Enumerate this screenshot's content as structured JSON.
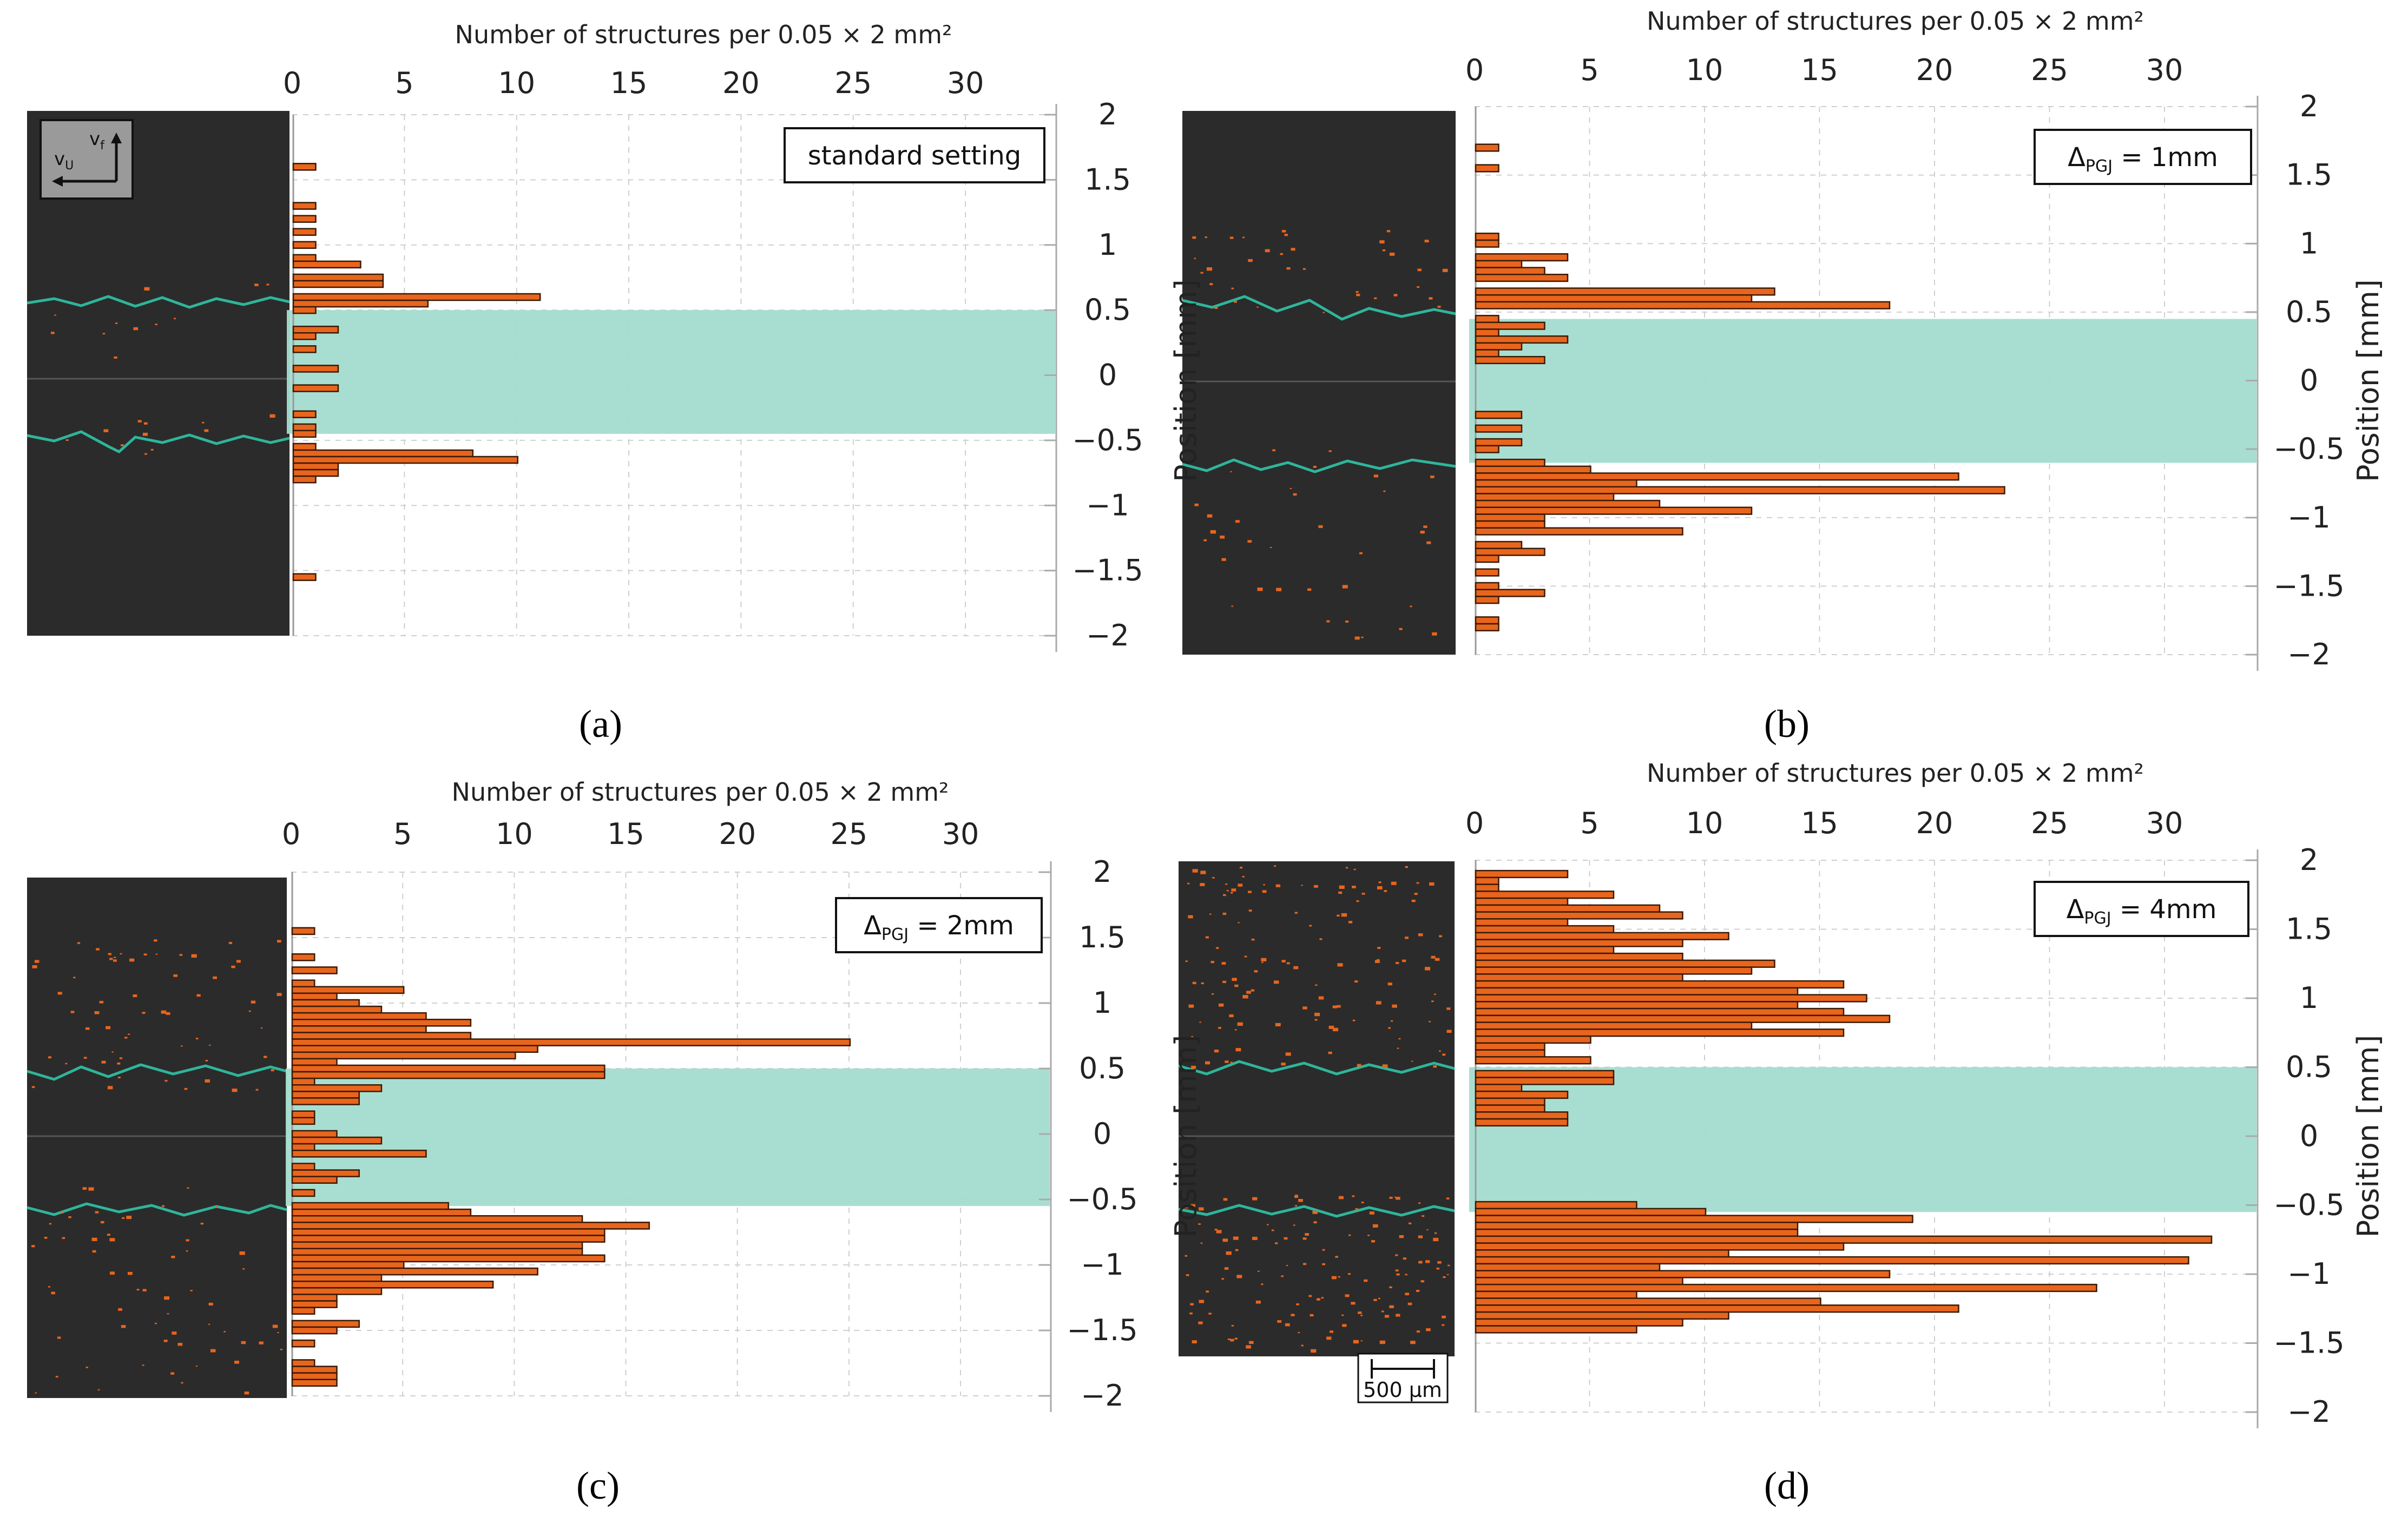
{
  "figure": {
    "xaxis_title": "Number of structures per 0.05 × 2 mm²",
    "yaxis_title": "Position [mm]",
    "scale_bar_label": "500 µm",
    "inset_labels": {
      "v_f": "v",
      "v_f_sub": "f",
      "v_u": "v",
      "v_u_sub": "U"
    }
  },
  "chart_data": [
    {
      "id": "a",
      "panel_label": "(a)",
      "type": "bar",
      "orientation": "horizontal",
      "legend_text": "standard setting",
      "legend_sub": "",
      "legend_suffix": "",
      "xlabel": "Number of structures per 0.05 × 2 mm²",
      "ylabel": "Position [mm]",
      "show_ylabel": false,
      "xlim": [
        0,
        34
      ],
      "ylim": [
        -2,
        2
      ],
      "x_ticks": [
        0,
        5,
        10,
        15,
        20,
        25,
        30
      ],
      "y_ticks": [
        2,
        1.5,
        1,
        0.5,
        0,
        -0.5,
        -1,
        -1.5,
        -2
      ],
      "y_tick_labels": [
        "2",
        "1.5",
        "1",
        "0.5",
        "0",
        "−0.5",
        "−1",
        "−1.5",
        "−2"
      ],
      "band": [
        -0.45,
        0.5
      ],
      "bins": [
        {
          "y": 1.6,
          "v": 1
        },
        {
          "y": 1.3,
          "v": 1
        },
        {
          "y": 1.2,
          "v": 1
        },
        {
          "y": 1.1,
          "v": 1
        },
        {
          "y": 1.0,
          "v": 1
        },
        {
          "y": 0.9,
          "v": 1
        },
        {
          "y": 0.85,
          "v": 3
        },
        {
          "y": 0.75,
          "v": 4
        },
        {
          "y": 0.7,
          "v": 4
        },
        {
          "y": 0.6,
          "v": 11
        },
        {
          "y": 0.55,
          "v": 6
        },
        {
          "y": 0.5,
          "v": 1
        },
        {
          "y": 0.35,
          "v": 2
        },
        {
          "y": 0.3,
          "v": 1
        },
        {
          "y": 0.2,
          "v": 1
        },
        {
          "y": 0.05,
          "v": 2
        },
        {
          "y": -0.1,
          "v": 2
        },
        {
          "y": -0.3,
          "v": 1
        },
        {
          "y": -0.4,
          "v": 1
        },
        {
          "y": -0.45,
          "v": 1
        },
        {
          "y": -0.55,
          "v": 1
        },
        {
          "y": -0.6,
          "v": 8
        },
        {
          "y": -0.65,
          "v": 10
        },
        {
          "y": -0.7,
          "v": 2
        },
        {
          "y": -0.75,
          "v": 2
        },
        {
          "y": -0.8,
          "v": 1
        },
        {
          "y": -1.55,
          "v": 1
        }
      ]
    },
    {
      "id": "b",
      "panel_label": "(b)",
      "type": "bar",
      "orientation": "horizontal",
      "legend_text": "Δ",
      "legend_sub": "PGJ",
      "legend_suffix": " = 1mm",
      "xlabel": "Number of structures per 0.05 × 2 mm²",
      "ylabel": "Position [mm]",
      "show_ylabel": true,
      "xlim": [
        0,
        34
      ],
      "ylim": [
        -2,
        2
      ],
      "x_ticks": [
        0,
        5,
        10,
        15,
        20,
        25,
        30
      ],
      "y_ticks": [
        2,
        1.5,
        1,
        0.5,
        0,
        -0.5,
        -1,
        -1.5,
        -2
      ],
      "y_tick_labels": [
        "2",
        "1.5",
        "1",
        "0.5",
        "0",
        "−0.5",
        "−1",
        "−1.5",
        "−2"
      ],
      "band": [
        -0.6,
        0.45
      ],
      "bins": [
        {
          "y": 1.7,
          "v": 1
        },
        {
          "y": 1.55,
          "v": 1
        },
        {
          "y": 1.05,
          "v": 1
        },
        {
          "y": 1.0,
          "v": 1
        },
        {
          "y": 0.9,
          "v": 4
        },
        {
          "y": 0.85,
          "v": 2
        },
        {
          "y": 0.8,
          "v": 3
        },
        {
          "y": 0.75,
          "v": 4
        },
        {
          "y": 0.65,
          "v": 13
        },
        {
          "y": 0.6,
          "v": 12
        },
        {
          "y": 0.55,
          "v": 18
        },
        {
          "y": 0.45,
          "v": 1
        },
        {
          "y": 0.4,
          "v": 3
        },
        {
          "y": 0.35,
          "v": 1
        },
        {
          "y": 0.3,
          "v": 4
        },
        {
          "y": 0.25,
          "v": 2
        },
        {
          "y": 0.2,
          "v": 1
        },
        {
          "y": 0.15,
          "v": 3
        },
        {
          "y": -0.25,
          "v": 2
        },
        {
          "y": -0.35,
          "v": 2
        },
        {
          "y": -0.45,
          "v": 2
        },
        {
          "y": -0.5,
          "v": 1
        },
        {
          "y": -0.6,
          "v": 3
        },
        {
          "y": -0.65,
          "v": 5
        },
        {
          "y": -0.7,
          "v": 21
        },
        {
          "y": -0.75,
          "v": 7
        },
        {
          "y": -0.8,
          "v": 23
        },
        {
          "y": -0.85,
          "v": 6
        },
        {
          "y": -0.9,
          "v": 8
        },
        {
          "y": -0.95,
          "v": 12
        },
        {
          "y": -1.0,
          "v": 3
        },
        {
          "y": -1.05,
          "v": 3
        },
        {
          "y": -1.1,
          "v": 9
        },
        {
          "y": -1.2,
          "v": 2
        },
        {
          "y": -1.25,
          "v": 3
        },
        {
          "y": -1.3,
          "v": 1
        },
        {
          "y": -1.4,
          "v": 1
        },
        {
          "y": -1.5,
          "v": 1
        },
        {
          "y": -1.55,
          "v": 3
        },
        {
          "y": -1.6,
          "v": 1
        },
        {
          "y": -1.75,
          "v": 1
        },
        {
          "y": -1.8,
          "v": 1
        }
      ]
    },
    {
      "id": "c",
      "panel_label": "(c)",
      "type": "bar",
      "orientation": "horizontal",
      "legend_text": "Δ",
      "legend_sub": "PGJ",
      "legend_suffix": " = 2mm",
      "xlabel": "Number of structures per 0.05 × 2 mm²",
      "ylabel": "Position [mm]",
      "show_ylabel": false,
      "xlim": [
        0,
        34
      ],
      "ylim": [
        -2,
        2
      ],
      "x_ticks": [
        0,
        5,
        10,
        15,
        20,
        25,
        30
      ],
      "y_ticks": [
        2,
        1.5,
        1,
        0.5,
        0,
        -0.5,
        -1,
        -1.5,
        -2
      ],
      "y_tick_labels": [
        "2",
        "1.5",
        "1",
        "0.5",
        "0",
        "−0.5",
        "−1",
        "−1.5",
        "−2"
      ],
      "band": [
        -0.55,
        0.5
      ],
      "bins": [
        {
          "y": 1.55,
          "v": 1
        },
        {
          "y": 1.35,
          "v": 1
        },
        {
          "y": 1.25,
          "v": 2
        },
        {
          "y": 1.15,
          "v": 1
        },
        {
          "y": 1.1,
          "v": 5
        },
        {
          "y": 1.05,
          "v": 2
        },
        {
          "y": 1.0,
          "v": 3
        },
        {
          "y": 0.95,
          "v": 4
        },
        {
          "y": 0.9,
          "v": 6
        },
        {
          "y": 0.85,
          "v": 8
        },
        {
          "y": 0.8,
          "v": 6
        },
        {
          "y": 0.75,
          "v": 8
        },
        {
          "y": 0.7,
          "v": 25
        },
        {
          "y": 0.65,
          "v": 11
        },
        {
          "y": 0.6,
          "v": 10
        },
        {
          "y": 0.55,
          "v": 2
        },
        {
          "y": 0.5,
          "v": 14
        },
        {
          "y": 0.45,
          "v": 14
        },
        {
          "y": 0.4,
          "v": 1
        },
        {
          "y": 0.35,
          "v": 4
        },
        {
          "y": 0.3,
          "v": 3
        },
        {
          "y": 0.25,
          "v": 3
        },
        {
          "y": 0.15,
          "v": 1
        },
        {
          "y": 0.1,
          "v": 1
        },
        {
          "y": 0.0,
          "v": 2
        },
        {
          "y": -0.05,
          "v": 4
        },
        {
          "y": -0.1,
          "v": 1
        },
        {
          "y": -0.15,
          "v": 6
        },
        {
          "y": -0.25,
          "v": 1
        },
        {
          "y": -0.3,
          "v": 3
        },
        {
          "y": -0.35,
          "v": 2
        },
        {
          "y": -0.45,
          "v": 1
        },
        {
          "y": -0.55,
          "v": 7
        },
        {
          "y": -0.6,
          "v": 8
        },
        {
          "y": -0.65,
          "v": 13
        },
        {
          "y": -0.7,
          "v": 16
        },
        {
          "y": -0.75,
          "v": 14
        },
        {
          "y": -0.8,
          "v": 14
        },
        {
          "y": -0.85,
          "v": 13
        },
        {
          "y": -0.9,
          "v": 13
        },
        {
          "y": -0.95,
          "v": 14
        },
        {
          "y": -1.0,
          "v": 5
        },
        {
          "y": -1.05,
          "v": 11
        },
        {
          "y": -1.1,
          "v": 4
        },
        {
          "y": -1.15,
          "v": 9
        },
        {
          "y": -1.2,
          "v": 4
        },
        {
          "y": -1.25,
          "v": 2
        },
        {
          "y": -1.3,
          "v": 2
        },
        {
          "y": -1.35,
          "v": 1
        },
        {
          "y": -1.45,
          "v": 3
        },
        {
          "y": -1.5,
          "v": 2
        },
        {
          "y": -1.6,
          "v": 1
        },
        {
          "y": -1.75,
          "v": 1
        },
        {
          "y": -1.8,
          "v": 2
        },
        {
          "y": -1.85,
          "v": 2
        },
        {
          "y": -1.9,
          "v": 2
        }
      ]
    },
    {
      "id": "d",
      "panel_label": "(d)",
      "type": "bar",
      "orientation": "horizontal",
      "legend_text": "Δ",
      "legend_sub": "PGJ",
      "legend_suffix": " = 4mm",
      "xlabel": "Number of structures per 0.05 × 2 mm²",
      "ylabel": "Position [mm]",
      "show_ylabel": true,
      "xlim": [
        0,
        34
      ],
      "ylim": [
        -2,
        2
      ],
      "x_ticks": [
        0,
        5,
        10,
        15,
        20,
        25,
        30
      ],
      "y_ticks": [
        2,
        1.5,
        1,
        0.5,
        0,
        -0.5,
        -1,
        -1.5,
        -2
      ],
      "y_tick_labels": [
        "2",
        "1.5",
        "1",
        "0.5",
        "0",
        "−0.5",
        "−1",
        "−1.5",
        "−2"
      ],
      "band": [
        -0.55,
        0.5
      ],
      "bins": [
        {
          "y": 1.9,
          "v": 4
        },
        {
          "y": 1.85,
          "v": 1
        },
        {
          "y": 1.8,
          "v": 1
        },
        {
          "y": 1.75,
          "v": 6
        },
        {
          "y": 1.7,
          "v": 4
        },
        {
          "y": 1.65,
          "v": 8
        },
        {
          "y": 1.6,
          "v": 9
        },
        {
          "y": 1.55,
          "v": 4
        },
        {
          "y": 1.5,
          "v": 6
        },
        {
          "y": 1.45,
          "v": 11
        },
        {
          "y": 1.4,
          "v": 9
        },
        {
          "y": 1.35,
          "v": 6
        },
        {
          "y": 1.3,
          "v": 9
        },
        {
          "y": 1.25,
          "v": 13
        },
        {
          "y": 1.2,
          "v": 12
        },
        {
          "y": 1.15,
          "v": 9
        },
        {
          "y": 1.1,
          "v": 16
        },
        {
          "y": 1.05,
          "v": 14
        },
        {
          "y": 1.0,
          "v": 17
        },
        {
          "y": 0.95,
          "v": 14
        },
        {
          "y": 0.9,
          "v": 16
        },
        {
          "y": 0.85,
          "v": 18
        },
        {
          "y": 0.8,
          "v": 12
        },
        {
          "y": 0.75,
          "v": 16
        },
        {
          "y": 0.7,
          "v": 5
        },
        {
          "y": 0.65,
          "v": 3
        },
        {
          "y": 0.6,
          "v": 3
        },
        {
          "y": 0.55,
          "v": 5
        },
        {
          "y": 0.45,
          "v": 6
        },
        {
          "y": 0.4,
          "v": 6
        },
        {
          "y": 0.35,
          "v": 2
        },
        {
          "y": 0.3,
          "v": 4
        },
        {
          "y": 0.25,
          "v": 3
        },
        {
          "y": 0.2,
          "v": 3
        },
        {
          "y": 0.15,
          "v": 4
        },
        {
          "y": 0.1,
          "v": 4
        },
        {
          "y": -0.5,
          "v": 7
        },
        {
          "y": -0.55,
          "v": 10
        },
        {
          "y": -0.6,
          "v": 19
        },
        {
          "y": -0.65,
          "v": 14
        },
        {
          "y": -0.7,
          "v": 14
        },
        {
          "y": -0.75,
          "v": 32
        },
        {
          "y": -0.8,
          "v": 16
        },
        {
          "y": -0.85,
          "v": 11
        },
        {
          "y": -0.9,
          "v": 31
        },
        {
          "y": -0.95,
          "v": 8
        },
        {
          "y": -1.0,
          "v": 18
        },
        {
          "y": -1.05,
          "v": 9
        },
        {
          "y": -1.1,
          "v": 27
        },
        {
          "y": -1.15,
          "v": 7
        },
        {
          "y": -1.2,
          "v": 15
        },
        {
          "y": -1.25,
          "v": 21
        },
        {
          "y": -1.3,
          "v": 11
        },
        {
          "y": -1.35,
          "v": 9
        },
        {
          "y": -1.4,
          "v": 7
        }
      ]
    }
  ]
}
